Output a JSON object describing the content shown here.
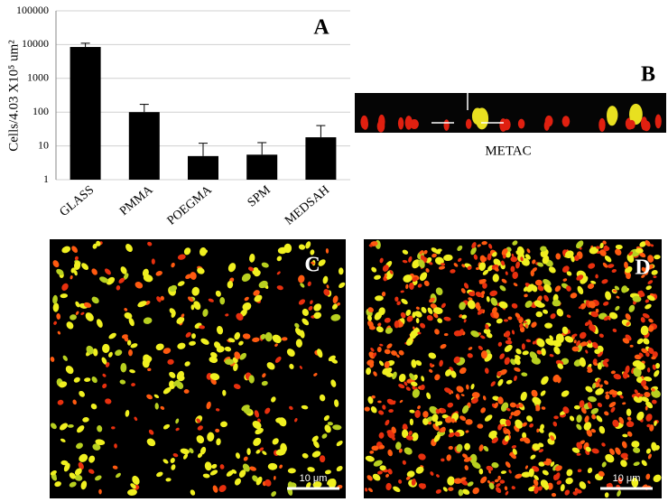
{
  "chart_data": {
    "type": "bar",
    "panel_label": "A",
    "y_label": "Cells/4.03  X10⁵ um²",
    "categories": [
      "GLASS",
      "PMMA",
      "POEGMA",
      "SPM",
      "MEDSAH"
    ],
    "values": [
      8500,
      100,
      5,
      5.5,
      18
    ],
    "errors": [
      2500,
      70,
      7,
      7,
      22
    ],
    "color": "#000000",
    "log_scale": true,
    "grid": true,
    "ylim": [
      1,
      100000
    ],
    "yticks": [
      1,
      10,
      100,
      1000,
      10000,
      100000
    ]
  },
  "panels": {
    "b": {
      "label": "B",
      "caption": "METAC"
    },
    "c": {
      "label": "C",
      "scale": "10 μm"
    },
    "d": {
      "label": "D",
      "scale": "10 μm"
    }
  }
}
